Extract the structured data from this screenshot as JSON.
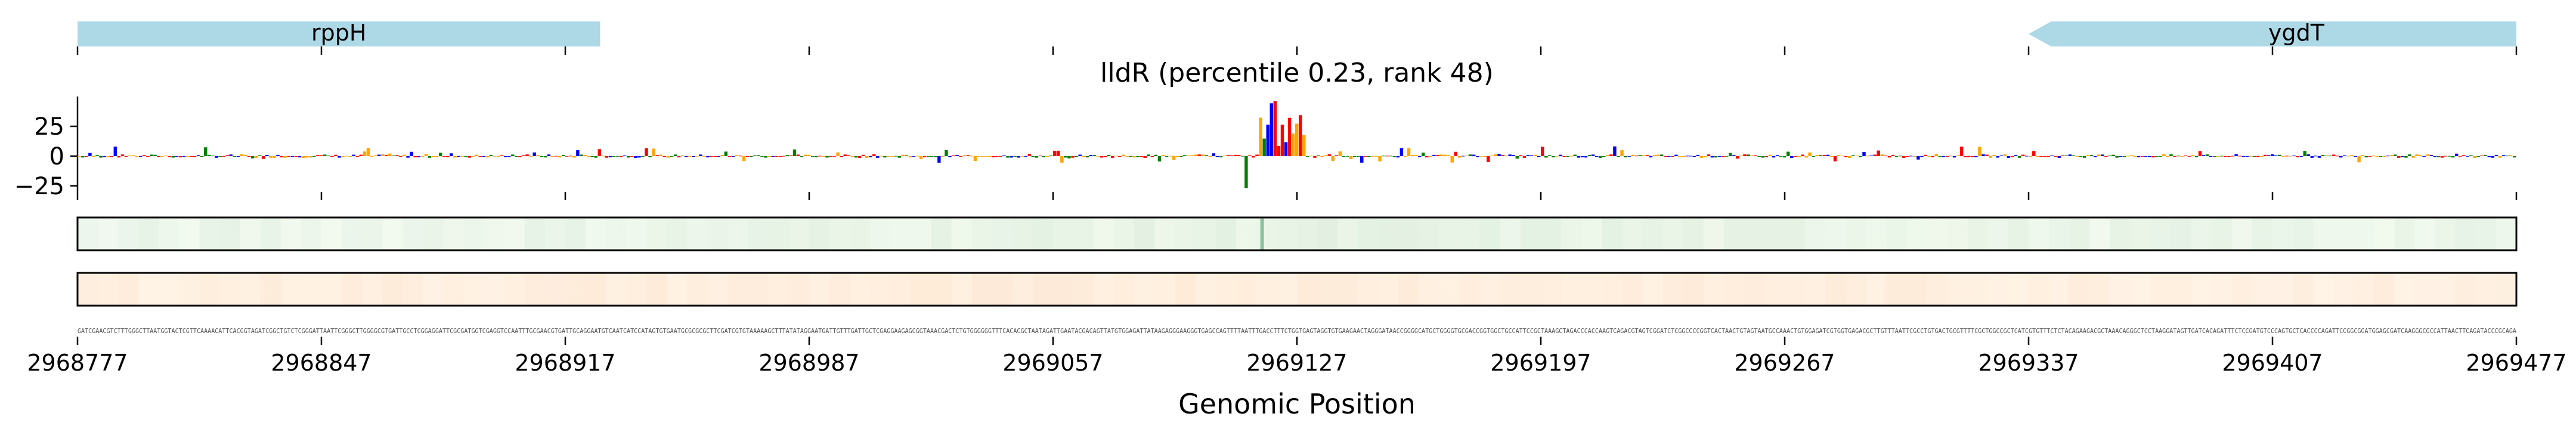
{
  "chart_data": [
    {
      "type": "gene-track",
      "genes": [
        {
          "name": "rppH",
          "start": 2968777,
          "end": 2968927,
          "strand": "+",
          "color": "#add8e6"
        },
        {
          "name": "ygdT",
          "start": 2969337,
          "end": 2969477,
          "strand": "-",
          "color": "#add8e6"
        }
      ],
      "xlim": [
        2968777,
        2969477
      ]
    },
    {
      "type": "sequence-logo",
      "title": "lldR (percentile 0.23, rank 48)",
      "ylim": [
        -30,
        50
      ],
      "yticks": [
        -25,
        0,
        25
      ],
      "base_colors": {
        "A": "#008000",
        "C": "#0000ff",
        "G": "#ffa500",
        "T": "#ff0000"
      },
      "peak_region": [
        2969117,
        2969127
      ],
      "peak_max": 47,
      "trough_min": -27
    },
    {
      "type": "heatmap",
      "name": "track-1",
      "colormap": "greens",
      "hotspot": 2969117
    },
    {
      "type": "heatmap",
      "name": "track-2",
      "colormap": "oranges"
    }
  ],
  "axis": {
    "xlabel": "Genomic Position",
    "xticks": [
      "2968777",
      "2968847",
      "2968917",
      "2968987",
      "2969057",
      "2969127",
      "2969197",
      "2969267",
      "2969337",
      "2969407",
      "2969477"
    ],
    "sequence": "GATCGAACGTCTTTGGGCTTAATGGTACTCGTTCAAAACATTCACGGTAGATCGGCTGTCTCGGGATTAATTCGGGCTTGGGGCGTGATTGCCTCGGAGGATTCGCGATGGTCGAGGTCCAATTTGCGAACGTGATTGCAGGAATGTCAATCATCCATAGTGTGAATGCGCGCGCTTCGATCGTGTAAAAAGCTTTATATAGGAATGATTGTTTGATTGCTCGAGGAAGAGCGGTAAACGACTCTGTGGGGGGTTTCACACGCTAATAGATTGAATACGACAGTTATGTGGAGATTATAAGAGGGAAGGGTGAGCCAGTTTTAATTTGACCTTTCTGGTGAGTAGGTGTGAAGAACTAGGGATAACCGGGGCATGCTGGGGTGCGACCGGTGGCTGCCATTCCGCTAAAGCTAGACCCACCAAGTCAGACGTAGTCGGATCTCGGCCCCGGTCACTAACTGTAGTAATGCCAAACTGTGGAGATCGTGGTGAGACGCTTGTTTAATTCGCCTGTGACTGCGTTTTCGCTGGCCGCTCATCGTGTTTCTCTACAGAAGACGCTAAACAGGGCTCCTAAGGATAGTTGATCACAGATTTCTCCGATGTCCCAGTGCTCACCCCAGATTCCGGCGGATGGAGCGATCAAGGGCGCCATTAACTTCAGATACCCGCAGA"
  }
}
